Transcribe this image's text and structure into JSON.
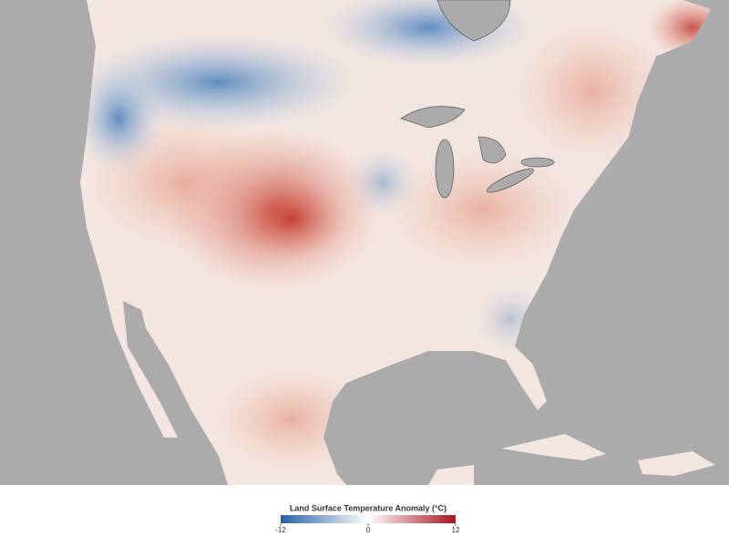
{
  "legend": {
    "title": "Land Surface Temperature Anomaly (°C)",
    "ticks": [
      -12,
      0,
      12
    ],
    "lim": [
      -12,
      12
    ],
    "colors": [
      "#2a5ea8",
      "#ffffff",
      "#a8141e"
    ]
  }
}
